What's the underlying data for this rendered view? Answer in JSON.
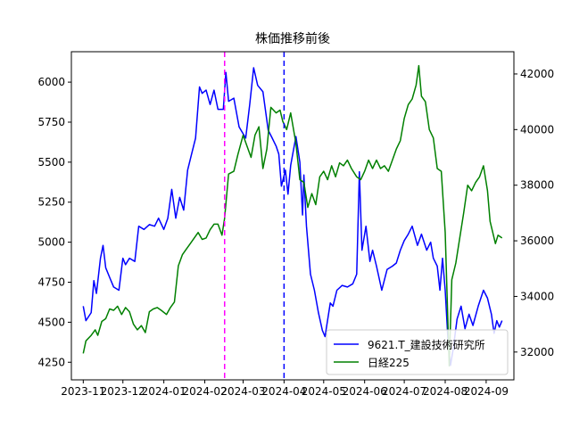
{
  "chart_data": {
    "type": "line",
    "title": "株価推移前後",
    "xlabel": "",
    "ylabel_left": "",
    "ylabel_right": "",
    "x_ticks": [
      "2023-11",
      "2023-12",
      "2024-01",
      "2024-02",
      "2024-03",
      "2024-04",
      "2024-05",
      "2024-06",
      "2024-07",
      "2024-08",
      "2024-09"
    ],
    "ylim_left": [
      4140,
      6190
    ],
    "ylim_right": [
      31000,
      42800
    ],
    "y_ticks_left": [
      4250,
      4500,
      4750,
      5000,
      5250,
      5500,
      5750,
      6000
    ],
    "y_ticks_right": [
      32000,
      34000,
      36000,
      38000,
      40000,
      42000
    ],
    "legend_position": "lower right",
    "series": [
      {
        "name": "9621.T_建設技術研究所",
        "axis": "left",
        "color": "#0000ff",
        "points": [
          [
            "2023-11-01",
            4600
          ],
          [
            "2023-11-03",
            4510
          ],
          [
            "2023-11-07",
            4560
          ],
          [
            "2023-11-09",
            4760
          ],
          [
            "2023-11-11",
            4680
          ],
          [
            "2023-11-14",
            4900
          ],
          [
            "2023-11-16",
            4980
          ],
          [
            "2023-11-18",
            4840
          ],
          [
            "2023-11-21",
            4780
          ],
          [
            "2023-11-24",
            4720
          ],
          [
            "2023-11-28",
            4700
          ],
          [
            "2023-12-01",
            4900
          ],
          [
            "2023-12-03",
            4860
          ],
          [
            "2023-12-06",
            4900
          ],
          [
            "2023-12-10",
            4880
          ],
          [
            "2023-12-13",
            5100
          ],
          [
            "2023-12-17",
            5080
          ],
          [
            "2023-12-21",
            5110
          ],
          [
            "2023-12-25",
            5100
          ],
          [
            "2023-12-28",
            5150
          ],
          [
            "2024-01-01",
            5080
          ],
          [
            "2024-01-04",
            5150
          ],
          [
            "2024-01-07",
            5330
          ],
          [
            "2024-01-10",
            5150
          ],
          [
            "2024-01-13",
            5280
          ],
          [
            "2024-01-16",
            5200
          ],
          [
            "2024-01-19",
            5450
          ],
          [
            "2024-01-22",
            5550
          ],
          [
            "2024-01-25",
            5650
          ],
          [
            "2024-01-28",
            5970
          ],
          [
            "2024-01-30",
            5930
          ],
          [
            "2024-02-02",
            5950
          ],
          [
            "2024-02-05",
            5860
          ],
          [
            "2024-02-08",
            5950
          ],
          [
            "2024-02-11",
            5830
          ],
          [
            "2024-02-15",
            5830
          ],
          [
            "2024-02-17",
            6060
          ],
          [
            "2024-02-19",
            5880
          ],
          [
            "2024-02-23",
            5900
          ],
          [
            "2024-02-27",
            5720
          ],
          [
            "2024-03-03",
            5650
          ],
          [
            "2024-03-06",
            5860
          ],
          [
            "2024-03-09",
            6090
          ],
          [
            "2024-03-12",
            5980
          ],
          [
            "2024-03-16",
            5940
          ],
          [
            "2024-03-20",
            5700
          ],
          [
            "2024-03-23",
            5650
          ],
          [
            "2024-03-26",
            5600
          ],
          [
            "2024-03-28",
            5550
          ],
          [
            "2024-03-30",
            5350
          ],
          [
            "2024-04-02",
            5450
          ],
          [
            "2024-04-04",
            5300
          ],
          [
            "2024-04-06",
            5480
          ],
          [
            "2024-04-10",
            5660
          ],
          [
            "2024-04-13",
            5500
          ],
          [
            "2024-04-15",
            5170
          ],
          [
            "2024-04-16",
            5420
          ],
          [
            "2024-04-18",
            5100
          ],
          [
            "2024-04-21",
            4800
          ],
          [
            "2024-04-24",
            4700
          ],
          [
            "2024-04-27",
            4560
          ],
          [
            "2024-04-30",
            4450
          ],
          [
            "2024-05-02",
            4410
          ],
          [
            "2024-05-06",
            4620
          ],
          [
            "2024-05-08",
            4600
          ],
          [
            "2024-05-11",
            4700
          ],
          [
            "2024-05-15",
            4730
          ],
          [
            "2024-05-19",
            4720
          ],
          [
            "2024-05-23",
            4740
          ],
          [
            "2024-05-26",
            4800
          ],
          [
            "2024-05-28",
            5440
          ],
          [
            "2024-05-30",
            4950
          ],
          [
            "2024-06-02",
            5100
          ],
          [
            "2024-06-05",
            4880
          ],
          [
            "2024-06-07",
            4950
          ],
          [
            "2024-06-10",
            4850
          ],
          [
            "2024-06-14",
            4700
          ],
          [
            "2024-06-18",
            4830
          ],
          [
            "2024-06-22",
            4850
          ],
          [
            "2024-06-25",
            4870
          ],
          [
            "2024-06-28",
            4950
          ],
          [
            "2024-07-01",
            5010
          ],
          [
            "2024-07-04",
            5050
          ],
          [
            "2024-07-07",
            5100
          ],
          [
            "2024-07-11",
            4980
          ],
          [
            "2024-07-14",
            5050
          ],
          [
            "2024-07-18",
            4950
          ],
          [
            "2024-07-21",
            5000
          ],
          [
            "2024-07-23",
            4900
          ],
          [
            "2024-07-26",
            4850
          ],
          [
            "2024-07-28",
            4700
          ],
          [
            "2024-07-30",
            4900
          ],
          [
            "2024-08-01",
            4700
          ],
          [
            "2024-08-03",
            4400
          ],
          [
            "2024-08-05",
            4230
          ],
          [
            "2024-08-07",
            4330
          ],
          [
            "2024-08-10",
            4520
          ],
          [
            "2024-08-13",
            4600
          ],
          [
            "2024-08-16",
            4460
          ],
          [
            "2024-08-19",
            4550
          ],
          [
            "2024-08-22",
            4480
          ],
          [
            "2024-08-26",
            4600
          ],
          [
            "2024-08-30",
            4700
          ],
          [
            "2024-09-02",
            4650
          ],
          [
            "2024-09-05",
            4550
          ],
          [
            "2024-09-07",
            4430
          ],
          [
            "2024-09-09",
            4510
          ],
          [
            "2024-09-11",
            4470
          ],
          [
            "2024-09-13",
            4510
          ]
        ]
      },
      {
        "name": "日経225",
        "axis": "right",
        "color": "#008000",
        "points": [
          [
            "2023-11-01",
            31950
          ],
          [
            "2023-11-03",
            32400
          ],
          [
            "2023-11-07",
            32600
          ],
          [
            "2023-11-10",
            32800
          ],
          [
            "2023-11-12",
            32600
          ],
          [
            "2023-11-15",
            33100
          ],
          [
            "2023-11-18",
            33200
          ],
          [
            "2023-11-21",
            33550
          ],
          [
            "2023-11-24",
            33500
          ],
          [
            "2023-11-27",
            33650
          ],
          [
            "2023-11-30",
            33350
          ],
          [
            "2023-12-03",
            33600
          ],
          [
            "2023-12-06",
            33450
          ],
          [
            "2023-12-09",
            33000
          ],
          [
            "2023-12-12",
            32800
          ],
          [
            "2023-12-15",
            32950
          ],
          [
            "2023-12-18",
            32700
          ],
          [
            "2023-12-21",
            33450
          ],
          [
            "2023-12-24",
            33550
          ],
          [
            "2023-12-27",
            33600
          ],
          [
            "2023-12-30",
            33500
          ],
          [
            "2024-01-03",
            33350
          ],
          [
            "2024-01-06",
            33600
          ],
          [
            "2024-01-09",
            33800
          ],
          [
            "2024-01-12",
            35100
          ],
          [
            "2024-01-15",
            35500
          ],
          [
            "2024-01-18",
            35700
          ],
          [
            "2024-01-21",
            35900
          ],
          [
            "2024-01-24",
            36100
          ],
          [
            "2024-01-27",
            36300
          ],
          [
            "2024-01-30",
            36050
          ],
          [
            "2024-02-02",
            36100
          ],
          [
            "2024-02-05",
            36400
          ],
          [
            "2024-02-08",
            36600
          ],
          [
            "2024-02-11",
            36600
          ],
          [
            "2024-02-14",
            36200
          ],
          [
            "2024-02-16",
            36800
          ],
          [
            "2024-02-19",
            38400
          ],
          [
            "2024-02-23",
            38500
          ],
          [
            "2024-02-26",
            39100
          ],
          [
            "2024-03-01",
            39800
          ],
          [
            "2024-03-04",
            39400
          ],
          [
            "2024-03-07",
            39000
          ],
          [
            "2024-03-10",
            39800
          ],
          [
            "2024-03-13",
            40100
          ],
          [
            "2024-03-16",
            38600
          ],
          [
            "2024-03-19",
            39300
          ],
          [
            "2024-03-22",
            40800
          ],
          [
            "2024-03-26",
            40600
          ],
          [
            "2024-03-29",
            40700
          ],
          [
            "2024-03-31",
            40300
          ],
          [
            "2024-04-03",
            40000
          ],
          [
            "2024-04-06",
            40600
          ],
          [
            "2024-04-10",
            39500
          ],
          [
            "2024-04-13",
            38200
          ],
          [
            "2024-04-16",
            38100
          ],
          [
            "2024-04-19",
            37200
          ],
          [
            "2024-04-22",
            37700
          ],
          [
            "2024-04-25",
            37300
          ],
          [
            "2024-04-28",
            38300
          ],
          [
            "2024-05-01",
            38500
          ],
          [
            "2024-05-04",
            38200
          ],
          [
            "2024-05-07",
            38700
          ],
          [
            "2024-05-10",
            38300
          ],
          [
            "2024-05-13",
            38800
          ],
          [
            "2024-05-16",
            38700
          ],
          [
            "2024-05-19",
            38900
          ],
          [
            "2024-05-22",
            38600
          ],
          [
            "2024-05-26",
            38300
          ],
          [
            "2024-05-29",
            38200
          ],
          [
            "2024-06-01",
            38500
          ],
          [
            "2024-06-04",
            38900
          ],
          [
            "2024-06-07",
            38600
          ],
          [
            "2024-06-10",
            38900
          ],
          [
            "2024-06-13",
            38600
          ],
          [
            "2024-06-16",
            38700
          ],
          [
            "2024-06-19",
            38500
          ],
          [
            "2024-06-22",
            38900
          ],
          [
            "2024-06-25",
            39300
          ],
          [
            "2024-06-28",
            39600
          ],
          [
            "2024-07-01",
            40400
          ],
          [
            "2024-07-04",
            40900
          ],
          [
            "2024-07-07",
            41100
          ],
          [
            "2024-07-10",
            41600
          ],
          [
            "2024-07-12",
            42300
          ],
          [
            "2024-07-14",
            41200
          ],
          [
            "2024-07-17",
            41000
          ],
          [
            "2024-07-20",
            40000
          ],
          [
            "2024-07-23",
            39700
          ],
          [
            "2024-07-26",
            38600
          ],
          [
            "2024-07-29",
            38500
          ],
          [
            "2024-08-01",
            36300
          ],
          [
            "2024-08-04",
            31500
          ],
          [
            "2024-08-06",
            34600
          ],
          [
            "2024-08-09",
            35200
          ],
          [
            "2024-08-12",
            36100
          ],
          [
            "2024-08-15",
            37000
          ],
          [
            "2024-08-18",
            38000
          ],
          [
            "2024-08-21",
            37800
          ],
          [
            "2024-08-24",
            38100
          ],
          [
            "2024-08-27",
            38300
          ],
          [
            "2024-08-30",
            38700
          ],
          [
            "2024-09-02",
            37800
          ],
          [
            "2024-09-04",
            36700
          ],
          [
            "2024-09-06",
            36300
          ],
          [
            "2024-09-08",
            35900
          ],
          [
            "2024-09-10",
            36200
          ],
          [
            "2024-09-13",
            36100
          ]
        ]
      }
    ],
    "vlines": [
      {
        "x": "2024-02-16",
        "color": "#ff00ff"
      },
      {
        "x": "2024-04-01",
        "color": "#0000ff"
      }
    ]
  }
}
